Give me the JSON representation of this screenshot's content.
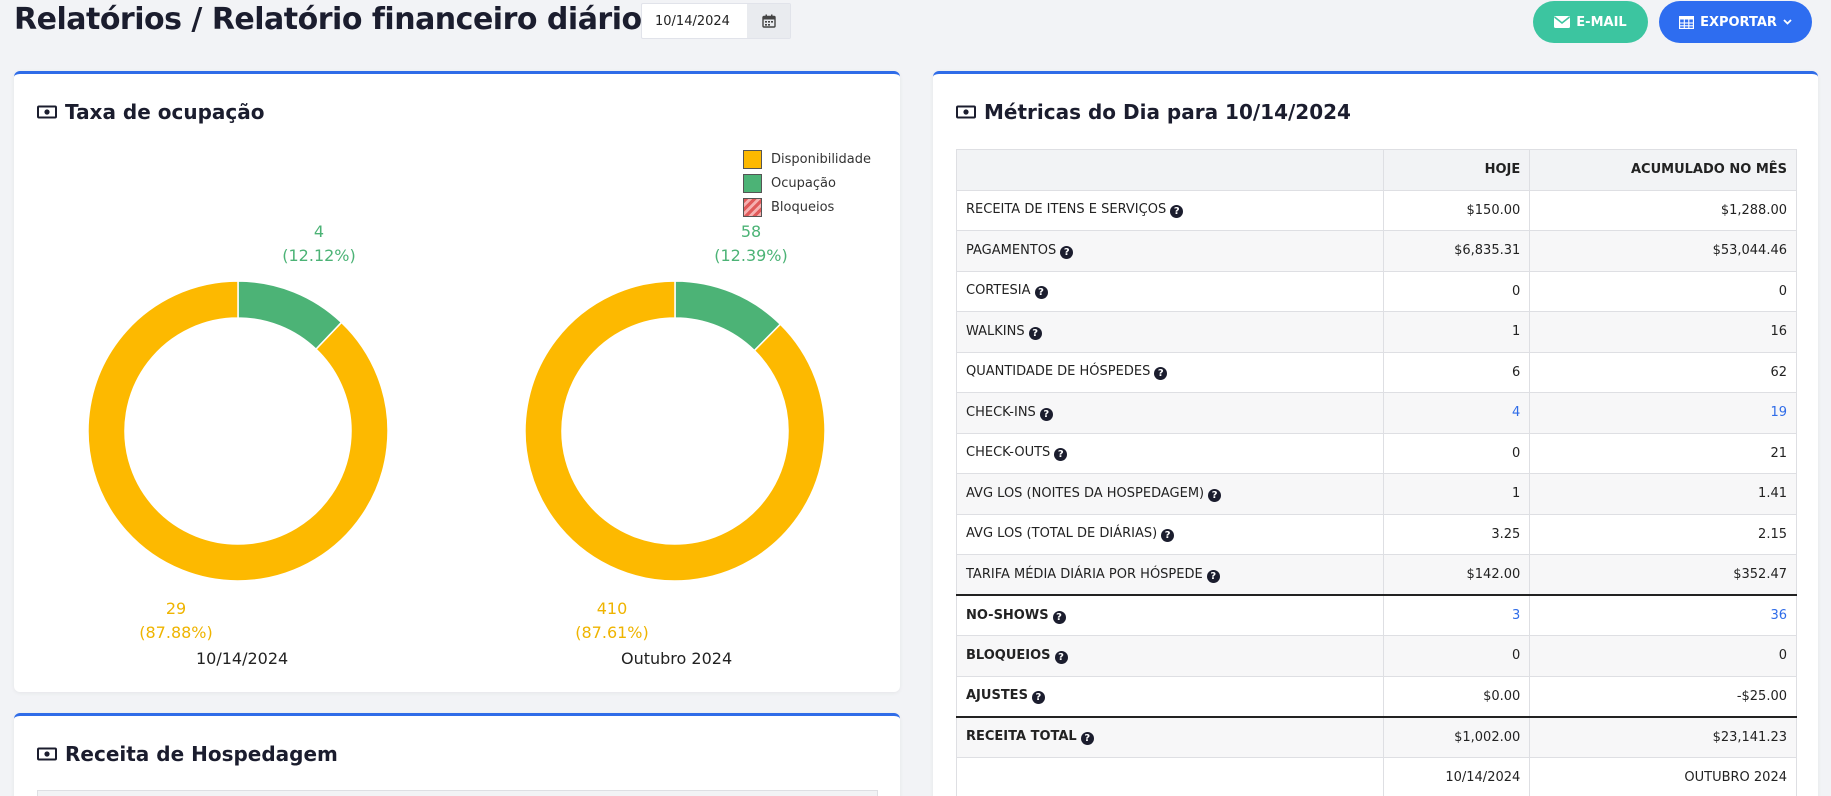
{
  "header": {
    "title": "Relatórios  / Relatório financeiro diário",
    "date_value": "10/14/2024",
    "email_label": "E-MAIL",
    "export_label": "EXPORTAR"
  },
  "colors": {
    "availability": "#fdb900",
    "occupancy": "#4cb376",
    "blocks": "#e05a5a",
    "accent": "#2f6ce8",
    "email_btn": "#3cc5a0"
  },
  "occupancy": {
    "title": "Taxa de ocupação",
    "legend": [
      "Disponibilidade",
      "Ocupação",
      "Bloqueios"
    ],
    "charts": [
      {
        "caption": "10/14/2024",
        "occupied": 4,
        "occupied_pct": "(12.12%)",
        "available": 29,
        "available_pct": "(87.88%)"
      },
      {
        "caption": "Outubro 2024",
        "occupied": 58,
        "occupied_pct": "(12.39%)",
        "available": 410,
        "available_pct": "(87.61%)"
      }
    ]
  },
  "chart_data": [
    {
      "type": "pie",
      "title": "",
      "categories": [
        "Disponibilidade",
        "Ocupação",
        "Bloqueios"
      ],
      "values": [
        29,
        4,
        0
      ],
      "xlabel": "10/14/2024"
    },
    {
      "type": "pie",
      "title": "",
      "categories": [
        "Disponibilidade",
        "Ocupação",
        "Bloqueios"
      ],
      "values": [
        410,
        58,
        0
      ],
      "xlabel": "Outubro 2024"
    }
  ],
  "metrics": {
    "title": "Métricas do Dia para  10/14/2024",
    "columns": [
      "",
      "HOJE",
      "ACUMULADO NO MÊS"
    ],
    "rows": [
      {
        "name": "Receita de itens e serviços",
        "today": "$150.00",
        "month": "$1,288.00"
      },
      {
        "name": "Pagamentos",
        "today": "$6,835.31",
        "month": "$53,044.46"
      },
      {
        "name": "Cortesia",
        "today": "0",
        "month": "0"
      },
      {
        "name": "Walkins",
        "today": "1",
        "month": "16"
      },
      {
        "name": "Quantidade de hóspedes",
        "today": "6",
        "month": "62"
      },
      {
        "name": "Check-ins",
        "today": "4",
        "month": "19"
      },
      {
        "name": "Check-outs",
        "today": "0",
        "month": "21"
      },
      {
        "name": "AVG LOS (noites da hospedagem)",
        "today": "1",
        "month": "1.41"
      },
      {
        "name": "AVG LOS (total de diárias)",
        "today": "3.25",
        "month": "2.15"
      },
      {
        "name": "Tarifa média diária por hóspede",
        "today": "$142.00",
        "month": "$352.47"
      },
      {
        "name": "No-shows",
        "today": "3",
        "month": "36"
      },
      {
        "name": "Bloqueios",
        "today": "0",
        "month": "0"
      },
      {
        "name": "Ajustes",
        "today": "$0.00",
        "month": "-$25.00"
      },
      {
        "name": "Receita total",
        "today": "$1,002.00",
        "month": "$23,141.23"
      }
    ],
    "footer": {
      "today": "10/14/2024",
      "month": "OUTUBRO 2024"
    }
  },
  "revenue": {
    "title": "Receita de Hospedagem"
  }
}
